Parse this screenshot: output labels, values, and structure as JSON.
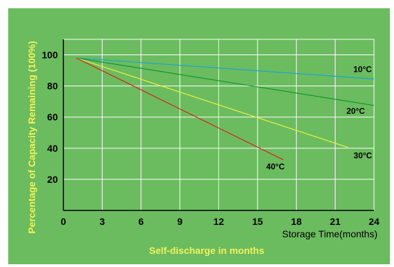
{
  "chart_data": {
    "type": "line",
    "title": "Self-discharge in months",
    "xlabel": "Storage Time(months)",
    "ylabel": "Percentage of Capacity Remaining (100%)",
    "xlim": [
      0,
      24
    ],
    "ylim": [
      0,
      110
    ],
    "xticks": [
      "0",
      "3",
      "6",
      "9",
      "12",
      "15",
      "18",
      "21",
      "24"
    ],
    "yticks": [
      "20",
      "40",
      "60",
      "80",
      "100"
    ],
    "grid": true,
    "series": [
      {
        "name": "10°C",
        "color": "#1fa0d8",
        "x": [
          1,
          24
        ],
        "y": [
          98,
          84.5
        ]
      },
      {
        "name": "20°C",
        "color": "#119633",
        "x": [
          1,
          24
        ],
        "y": [
          98,
          67.5
        ]
      },
      {
        "name": "30°C",
        "color": "#f0f038",
        "x": [
          1,
          22
        ],
        "y": [
          98,
          40.5
        ]
      },
      {
        "name": "40°C",
        "color": "#e01818",
        "x": [
          1,
          17
        ],
        "y": [
          98,
          32.5
        ]
      }
    ]
  },
  "colors": {
    "panel": "#6bbc5e",
    "grid": "#ffffff",
    "axis": "#000000",
    "accent_text": "#f2f25a"
  }
}
